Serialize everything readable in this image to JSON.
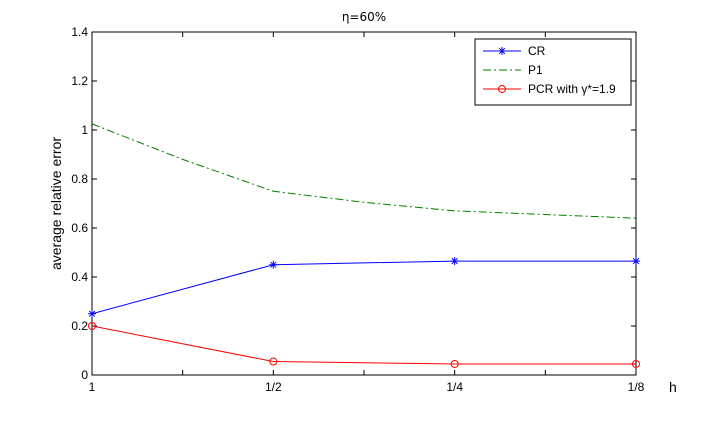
{
  "chart_data": {
    "type": "line",
    "title": "η=60%",
    "xlabel": "h",
    "ylabel": "average relative error",
    "categories": [
      "1",
      "1/2",
      "1/4",
      "1/8"
    ],
    "ylim": [
      0,
      1.4
    ],
    "yticks": [
      "0",
      "0.2",
      "0.4",
      "0.6",
      "0.8",
      "1",
      "1.2",
      "1.4"
    ],
    "grid": false,
    "legend_position": "top-right",
    "series": [
      {
        "name": "CR",
        "values": [
          0.25,
          0.45,
          0.465,
          0.465
        ],
        "color": "#0000ff",
        "line": "solid",
        "marker": "asterisk"
      },
      {
        "name": "P1",
        "values": [
          1.025,
          0.75,
          0.67,
          0.64
        ],
        "color": "#008000",
        "line": "dashdot",
        "marker": "none",
        "curve": [
          [
            1,
            1.025
          ],
          [
            1.5,
            0.88
          ],
          [
            2,
            0.75
          ],
          [
            2.5,
            0.705
          ],
          [
            3,
            0.67
          ],
          [
            3.5,
            0.655
          ],
          [
            4,
            0.64
          ]
        ]
      },
      {
        "name": "PCR with γ*=1.9",
        "values": [
          0.2,
          0.055,
          0.045,
          0.045
        ],
        "color": "#ff0000",
        "line": "solid",
        "marker": "circle"
      }
    ]
  }
}
